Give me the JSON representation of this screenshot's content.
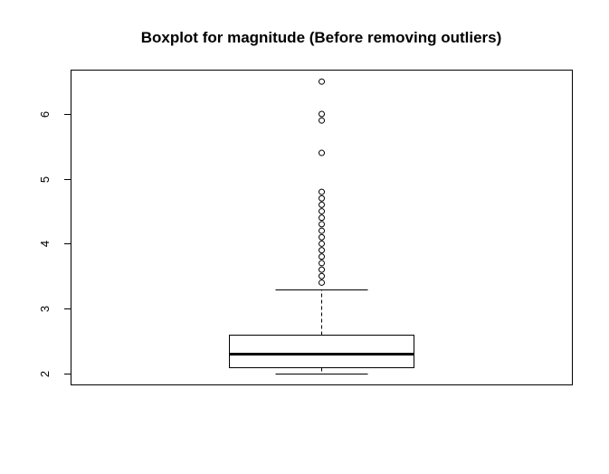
{
  "chart_data": {
    "type": "boxplot",
    "title": "Boxplot for magnitude (Before removing outliers)",
    "xlabel": "",
    "ylabel": "",
    "ylim": [
      1.83,
      6.67
    ],
    "yticks": [
      2,
      3,
      4,
      5,
      6
    ],
    "grid": false,
    "box": {
      "whisker_low": 2.0,
      "q1": 2.1,
      "median": 2.3,
      "q3": 2.6,
      "whisker_high": 3.3
    },
    "outliers": [
      3.4,
      3.5,
      3.6,
      3.7,
      3.8,
      3.9,
      4.0,
      4.1,
      4.2,
      4.3,
      4.4,
      4.5,
      4.6,
      4.7,
      4.8,
      5.4,
      5.9,
      6.0,
      6.5
    ]
  }
}
